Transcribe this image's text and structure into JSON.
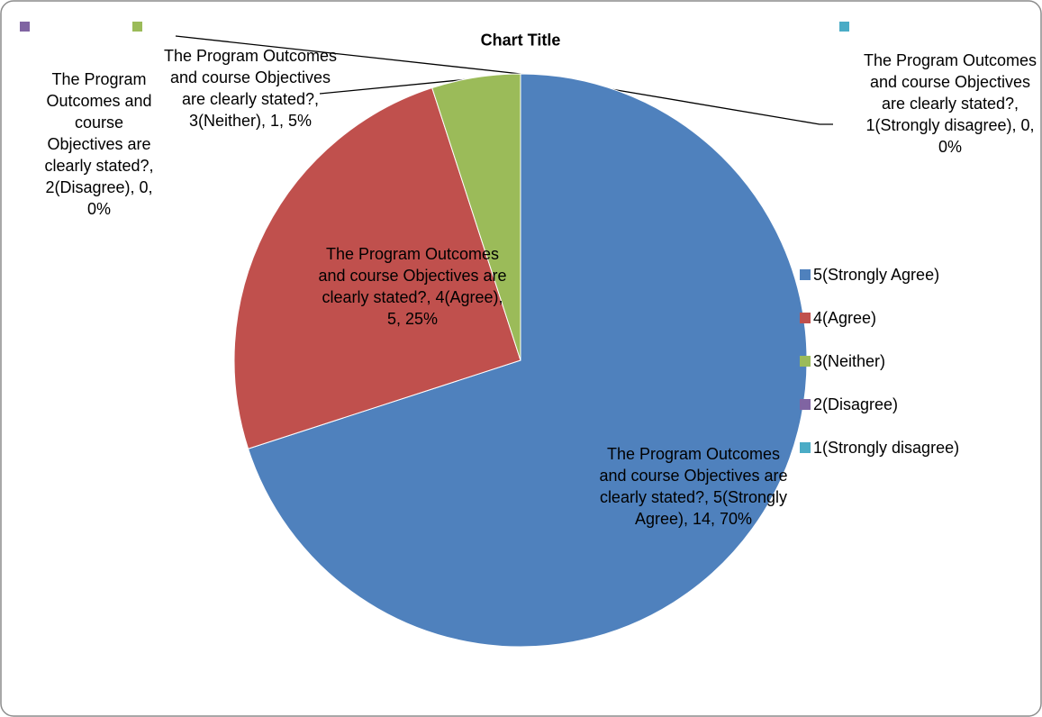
{
  "chart_data": {
    "type": "pie",
    "title": "Chart Title",
    "categories": [
      "5(Strongly Agree)",
      "4(Agree)",
      "3(Neither)",
      "2(Disagree)",
      "1(Strongly disagree)"
    ],
    "values": [
      14,
      5,
      1,
      0,
      0
    ],
    "value_labels": [
      "The Program Outcomes and course Objectives are clearly stated?, 5(Strongly Agree), 14, 70%",
      "The Program Outcomes and course Objectives are clearly stated?, 4(Agree), 5, 25%",
      "The Program Outcomes and course Objectives are clearly stated?, 3(Neither), 1, 5%",
      "The Program Outcomes and course Objectives are clearly stated?, 2(Disagree), 0, 0%",
      "The Program Outcomes and course Objectives are clearly stated?, 1(Strongly disagree), 0, 0%"
    ],
    "colors": [
      "#4f81bd",
      "#c0504d",
      "#9bbb59",
      "#8064a2",
      "#4bacc6"
    ],
    "legend": "right"
  }
}
